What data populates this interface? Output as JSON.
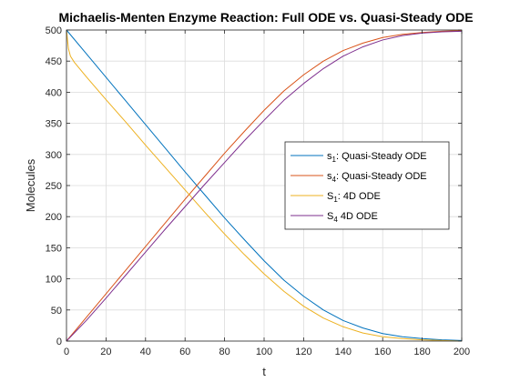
{
  "chart_data": {
    "type": "line",
    "title": "Michaelis-Menten Enzyme Reaction: Full ODE vs. Quasi-Steady ODE",
    "xlabel": "t",
    "ylabel": "Molecules",
    "xlim": [
      0,
      200
    ],
    "ylim": [
      0,
      500
    ],
    "xticks": [
      0,
      20,
      40,
      60,
      80,
      100,
      120,
      140,
      160,
      180,
      200
    ],
    "yticks": [
      0,
      50,
      100,
      150,
      200,
      250,
      300,
      350,
      400,
      450,
      500
    ],
    "grid": true,
    "legend_position": "right",
    "series": [
      {
        "legend_main": "s",
        "legend_sub": "1",
        "legend_rest": ": Quasi-Steady ODE",
        "color": "#0072BD",
        "x": [
          0,
          10,
          20,
          30,
          40,
          50,
          60,
          70,
          80,
          90,
          100,
          110,
          120,
          130,
          140,
          150,
          160,
          170,
          180,
          190,
          200
        ],
        "y": [
          500,
          462,
          424,
          386,
          348,
          310,
          272,
          235,
          198,
          163,
          129,
          98,
          72,
          50,
          33,
          21,
          12,
          7,
          4,
          2,
          1
        ]
      },
      {
        "legend_main": "s",
        "legend_sub": "4",
        "legend_rest": ": Quasi-Steady ODE",
        "color": "#D95319",
        "x": [
          0,
          10,
          20,
          30,
          40,
          50,
          60,
          70,
          80,
          90,
          100,
          110,
          120,
          130,
          140,
          150,
          160,
          170,
          180,
          190,
          200
        ],
        "y": [
          0,
          38,
          76,
          114,
          152,
          190,
          228,
          265,
          302,
          337,
          371,
          402,
          428,
          450,
          467,
          479,
          488,
          493,
          496,
          498,
          499
        ]
      },
      {
        "legend_main": "S",
        "legend_sub": "1",
        "legend_rest": ": 4D ODE",
        "color": "#EDB120",
        "x": [
          0,
          1,
          2,
          4,
          10,
          20,
          30,
          40,
          50,
          60,
          70,
          80,
          90,
          100,
          110,
          120,
          130,
          140,
          150,
          160,
          170,
          180,
          190,
          200
        ],
        "y": [
          500,
          470,
          458,
          448,
          425,
          388,
          352,
          315,
          279,
          243,
          207,
          172,
          139,
          108,
          80,
          56,
          37,
          23,
          13,
          7,
          4,
          2,
          1,
          0
        ]
      },
      {
        "legend_main": "S",
        "legend_sub": "4",
        "legend_rest": " 4D ODE",
        "color": "#7E2F8E",
        "x": [
          0,
          10,
          20,
          30,
          40,
          50,
          60,
          70,
          80,
          90,
          100,
          110,
          120,
          130,
          140,
          150,
          160,
          170,
          180,
          190,
          200
        ],
        "y": [
          0,
          33,
          69,
          106,
          143,
          180,
          216,
          252,
          287,
          322,
          355,
          387,
          414,
          438,
          458,
          473,
          484,
          491,
          495,
          497,
          498
        ]
      }
    ]
  }
}
